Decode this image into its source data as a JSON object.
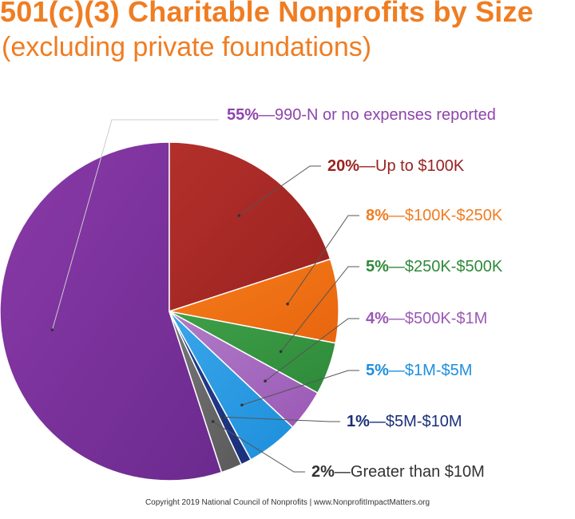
{
  "chart_data": {
    "type": "pie",
    "title": "501(c)(3) Charitable Nonprofits by Size",
    "subtitle": "(excluding private foundations)",
    "slices": [
      {
        "pct": "55%",
        "label": "990-N or no expenses reported",
        "value": 55,
        "color": "#6b2a8e",
        "light": "#8a3aa8"
      },
      {
        "pct": "20%",
        "label": "Up to $100K",
        "value": 20,
        "color": "#9a2220",
        "light": "#b3302b"
      },
      {
        "pct": "8%",
        "label": "$100K-$250K",
        "value": 8,
        "color": "#e8650f",
        "light": "#f57c1a"
      },
      {
        "pct": "5%",
        "label": "$250K-$500K",
        "value": 5,
        "color": "#2e8a3a",
        "light": "#3fa048"
      },
      {
        "pct": "4%",
        "label": "$500K-$1M",
        "value": 4,
        "color": "#9b59b6",
        "light": "#b07cc8"
      },
      {
        "pct": "5%",
        "label": "$1M-$5M",
        "value": 5,
        "color": "#1e8fdc",
        "light": "#3aa6ea"
      },
      {
        "pct": "1%",
        "label": "$5M-$10M",
        "value": 1,
        "color": "#1b2f7a",
        "light": "#25408f"
      },
      {
        "pct": "2%",
        "label": "Greater than $10M",
        "value": 2,
        "color": "#5a5a5a",
        "light": "#777777"
      }
    ],
    "label_colors": [
      "#8e44ad",
      "#9a2220",
      "#ef7d22",
      "#2e8a3a",
      "#9b59b6",
      "#1e8fdc",
      "#1b2f7a",
      "#333333"
    ],
    "dash": "—"
  },
  "footer": "Copyright 2019 National Council of Nonprofits | www.NonprofitImpactMatters.org"
}
